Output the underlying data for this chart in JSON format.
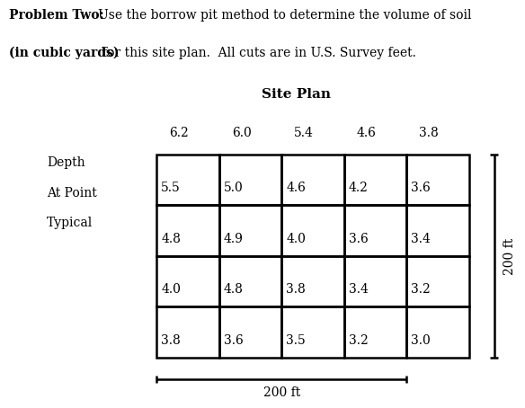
{
  "title_bold": "Problem Two:",
  "title_normal": "  Use the borrow pit method to determine the volume of soil\n(in cubic yards) for this site plan.  All cuts are in U.S. Survey feet.",
  "title_line2_bold": "(in cubic yards)",
  "subtitle": "Site Plan",
  "depth_label_lines": [
    "Depth",
    "At Point",
    "Typical"
  ],
  "top_row_labels": [
    "6.2",
    "6.0",
    "5.4",
    "4.6",
    "3.8"
  ],
  "grid_values": [
    [
      "5.5",
      "5.0",
      "4.6",
      "4.2",
      "3.6"
    ],
    [
      "4.8",
      "4.9",
      "4.0",
      "3.6",
      "3.4"
    ],
    [
      "4.0",
      "4.8",
      "3.8",
      "3.4",
      "3.2"
    ],
    [
      "3.8",
      "3.6",
      "3.5",
      "3.2",
      "3.0"
    ]
  ],
  "dim_horiz": "200 ft",
  "dim_vert": "200 ft",
  "background": "#ffffff",
  "text_color": "#000000",
  "n_cols": 5,
  "n_rows": 4,
  "fontsize": 10,
  "subtitle_fontsize": 11
}
